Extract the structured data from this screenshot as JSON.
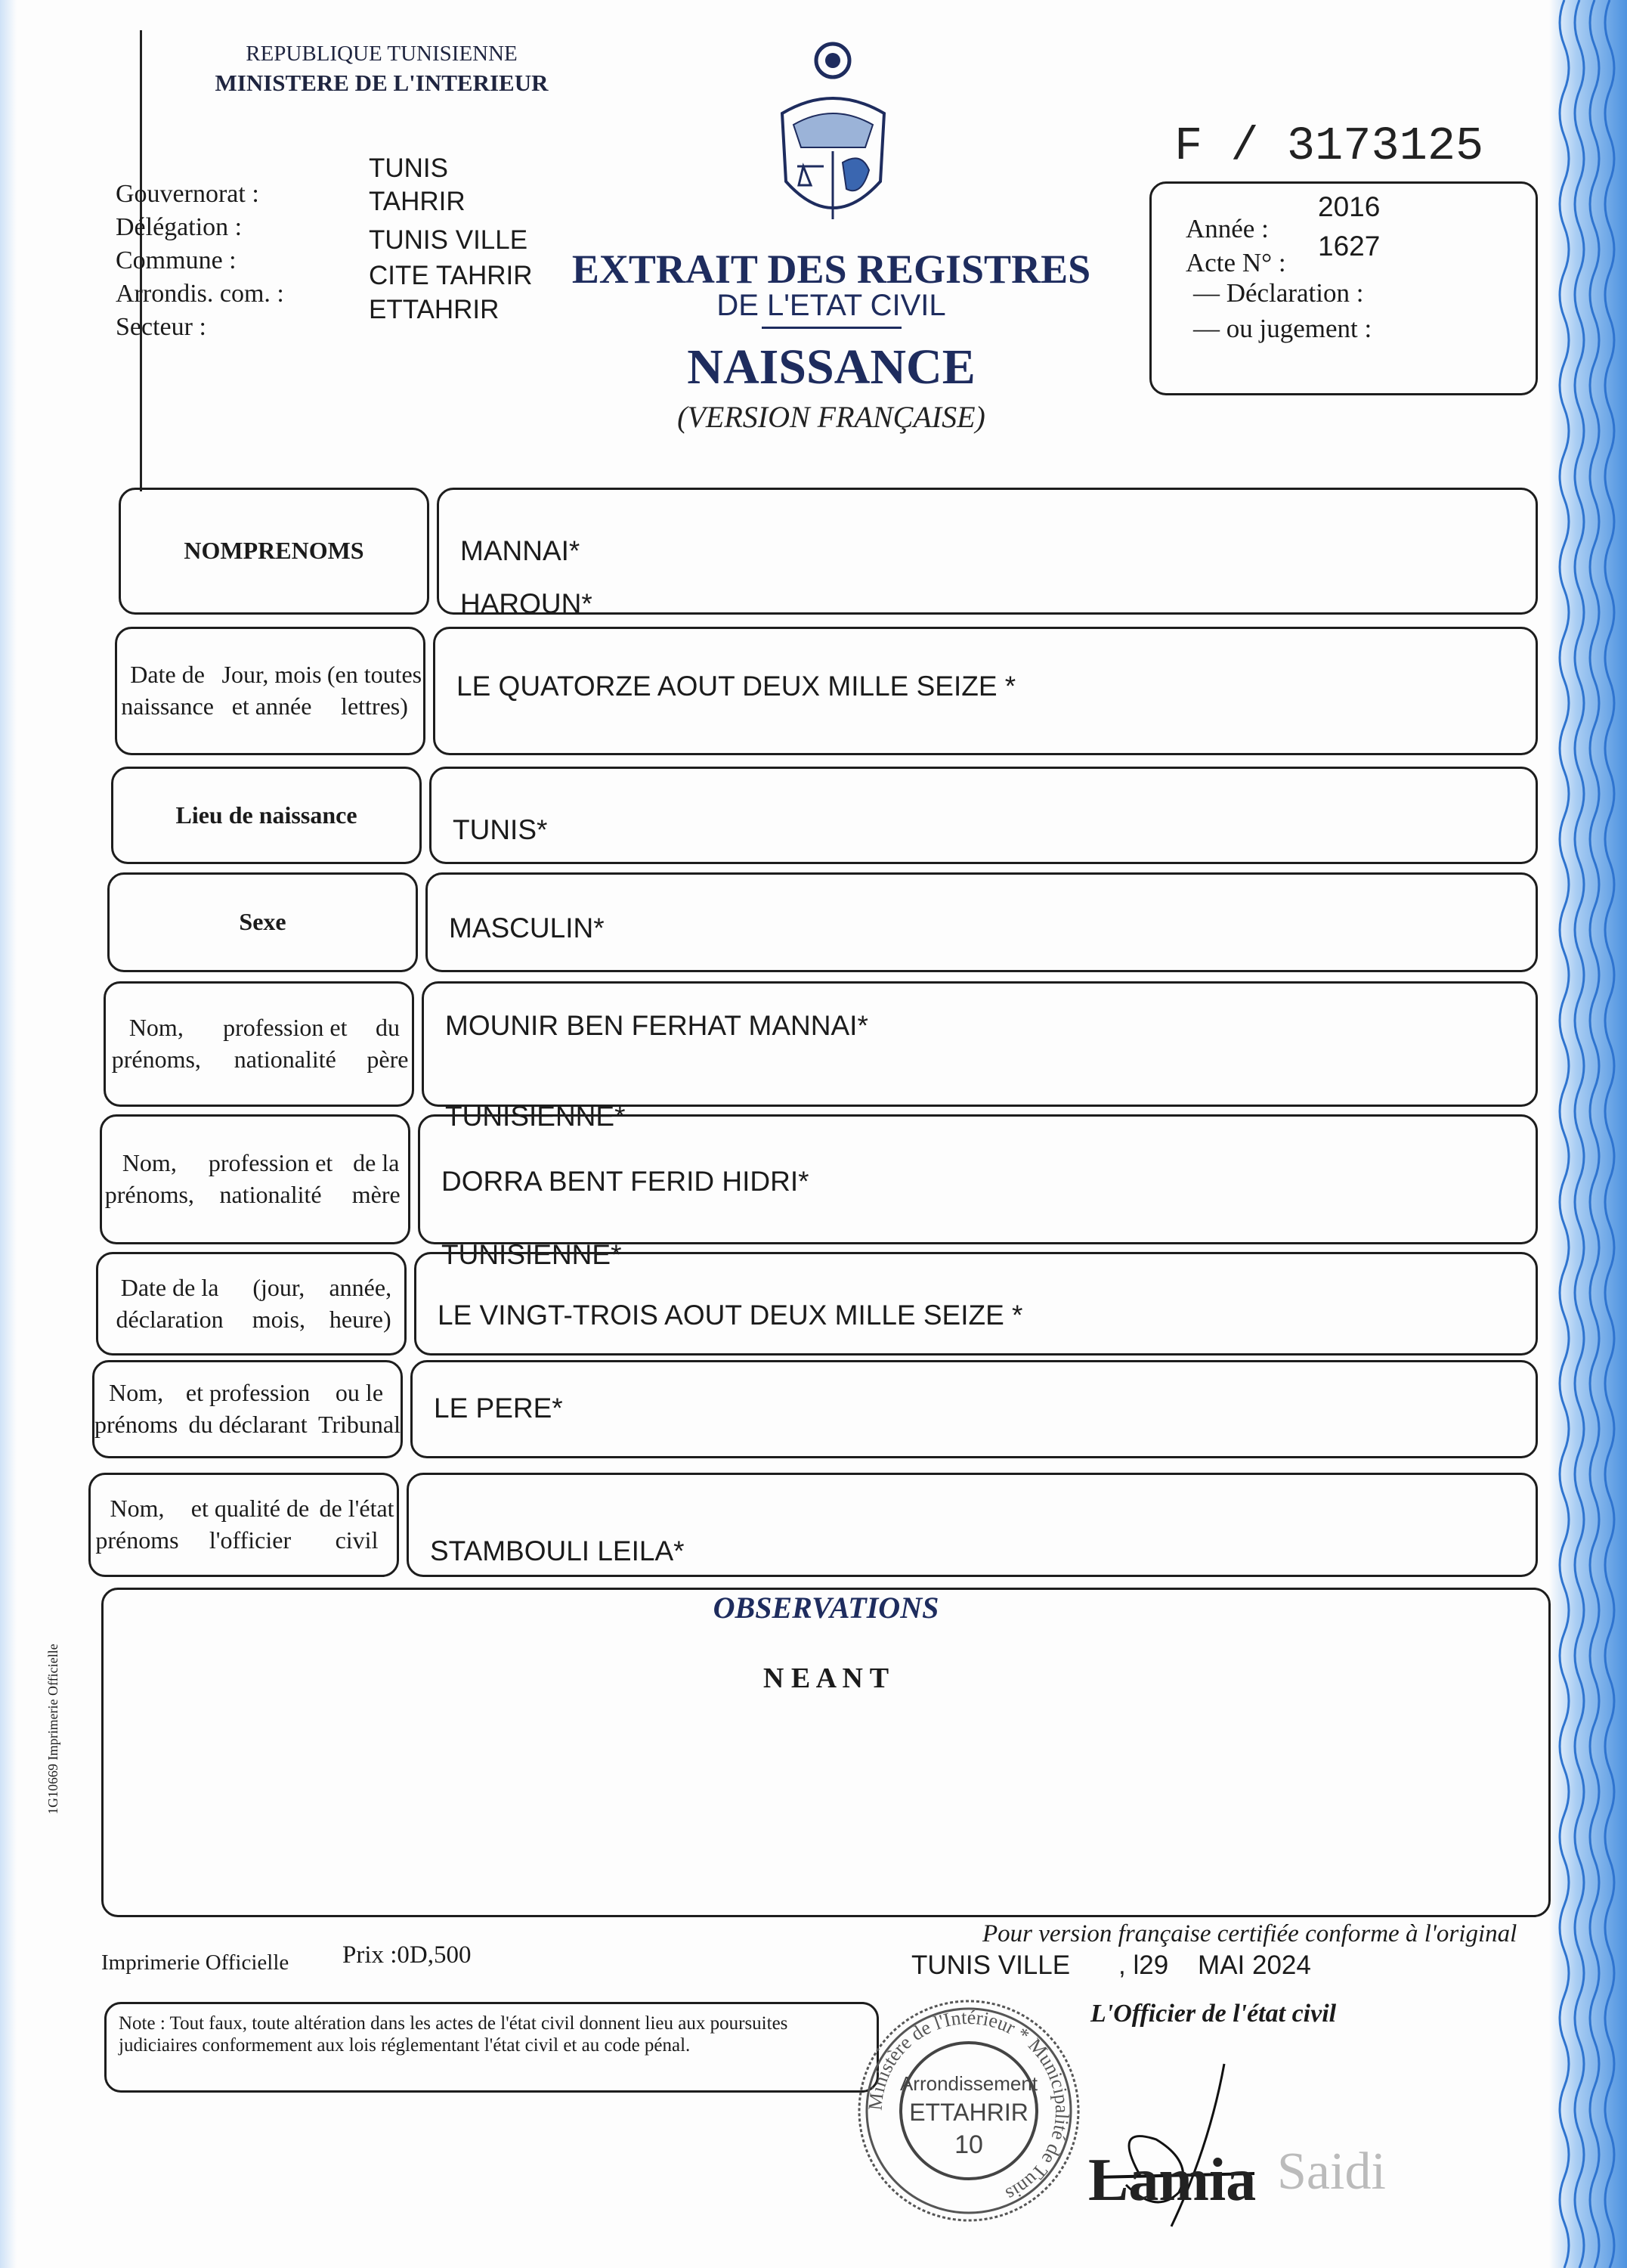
{
  "header": {
    "republic": "REPUBLIQUE TUNISIENNE",
    "ministry": "MINISTERE DE L'INTERIEUR",
    "location_labels": [
      "Gouvernorat :",
      "Délégation :",
      "Commune :",
      "Arrondis. com. :",
      "Secteur :"
    ],
    "location_values": [
      "TUNIS",
      "TAHRIR",
      "TUNIS VILLE",
      "CITE TAHRIR",
      "ETTAHRIR"
    ],
    "emblem_icon": "tunisia-coat-of-arms-icon"
  },
  "serial": "F / 3173125",
  "title": {
    "line1": "EXTRAIT DES REGISTRES",
    "line2": "DE L'ETAT CIVIL",
    "type": "NAISSANCE",
    "version": "(VERSION FRANÇAISE)"
  },
  "act_box": {
    "annee_label": "Année :",
    "annee_value": "2016",
    "acte_label": "Acte N° :",
    "acte_value": "1627",
    "declaration_label": "— Déclaration :",
    "jugement_label": "— ou jugement :"
  },
  "rows": [
    {
      "label": [
        "NOM",
        "PRENOMS"
      ],
      "bold": true,
      "values": [
        "MANNAI*",
        "HAROUN*"
      ]
    },
    {
      "label": [
        "Date de naissance",
        "Jour, mois et année",
        "(en toutes lettres)"
      ],
      "bold": false,
      "values": [
        "LE QUATORZE AOUT  DEUX MILLE SEIZE *"
      ]
    },
    {
      "label": [
        "Lieu de naissance"
      ],
      "bold": true,
      "values": [
        "TUNIS*"
      ]
    },
    {
      "label": [
        "Sexe"
      ],
      "bold": true,
      "values": [
        "MASCULIN*"
      ]
    },
    {
      "label": [
        "Nom, prénoms,",
        "profession et nationalité",
        "du père"
      ],
      "bold": false,
      "values": [
        "MOUNIR BEN FERHAT MANNAI*",
        "TUNISIENNE*"
      ]
    },
    {
      "label": [
        "Nom, prénoms,",
        "profession et nationalité",
        "de la mère"
      ],
      "bold": false,
      "values": [
        "DORRA BENT FERID HIDRI*",
        "TUNISIENNE*"
      ]
    },
    {
      "label": [
        "Date de la déclaration",
        "(jour, mois,",
        "année, heure)"
      ],
      "bold": false,
      "values": [
        "LE VINGT-TROIS AOUT  DEUX MILLE SEIZE *"
      ]
    },
    {
      "label": [
        "Nom, prénoms",
        "et profession du déclarant",
        "ou le Tribunal"
      ],
      "bold": false,
      "values": [
        "LE PERE*"
      ]
    },
    {
      "label": [
        "Nom, prénoms",
        "et qualité de l'officier",
        "de l'état civil"
      ],
      "bold": false,
      "values": [
        "STAMBOULI LEILA*"
      ]
    }
  ],
  "observations": {
    "title": "OBSERVATIONS",
    "value": "N E A N T"
  },
  "footer": {
    "printer": "Imprimerie Officielle",
    "price": "Prix :0D,500",
    "certification": "Pour version française certifiée conforme à l'original",
    "place": "TUNIS VILLE",
    "date": ", l29    MAI 2024",
    "officer_title": "L'Officier de l'état civil",
    "note": "Note :  Tout faux, toute altération dans les actes de l'état civil donnent lieu aux poursuites judiciaires conformement aux lois réglementant l'état civil et au code pénal.",
    "side_code": "1G10669 Imprimerie Officielle",
    "stamp": {
      "ring_text": "Ministère de l'Intérieur * Municipalité de Tunis",
      "line1": "Arrondissement",
      "line2": "ETTAHRIR",
      "line3": "10"
    },
    "signature": "Lamia Saidi"
  },
  "colors": {
    "title_blue": "#1e2c5e",
    "security_border": "#6fa8e6",
    "ink": "#1b1b1b"
  }
}
